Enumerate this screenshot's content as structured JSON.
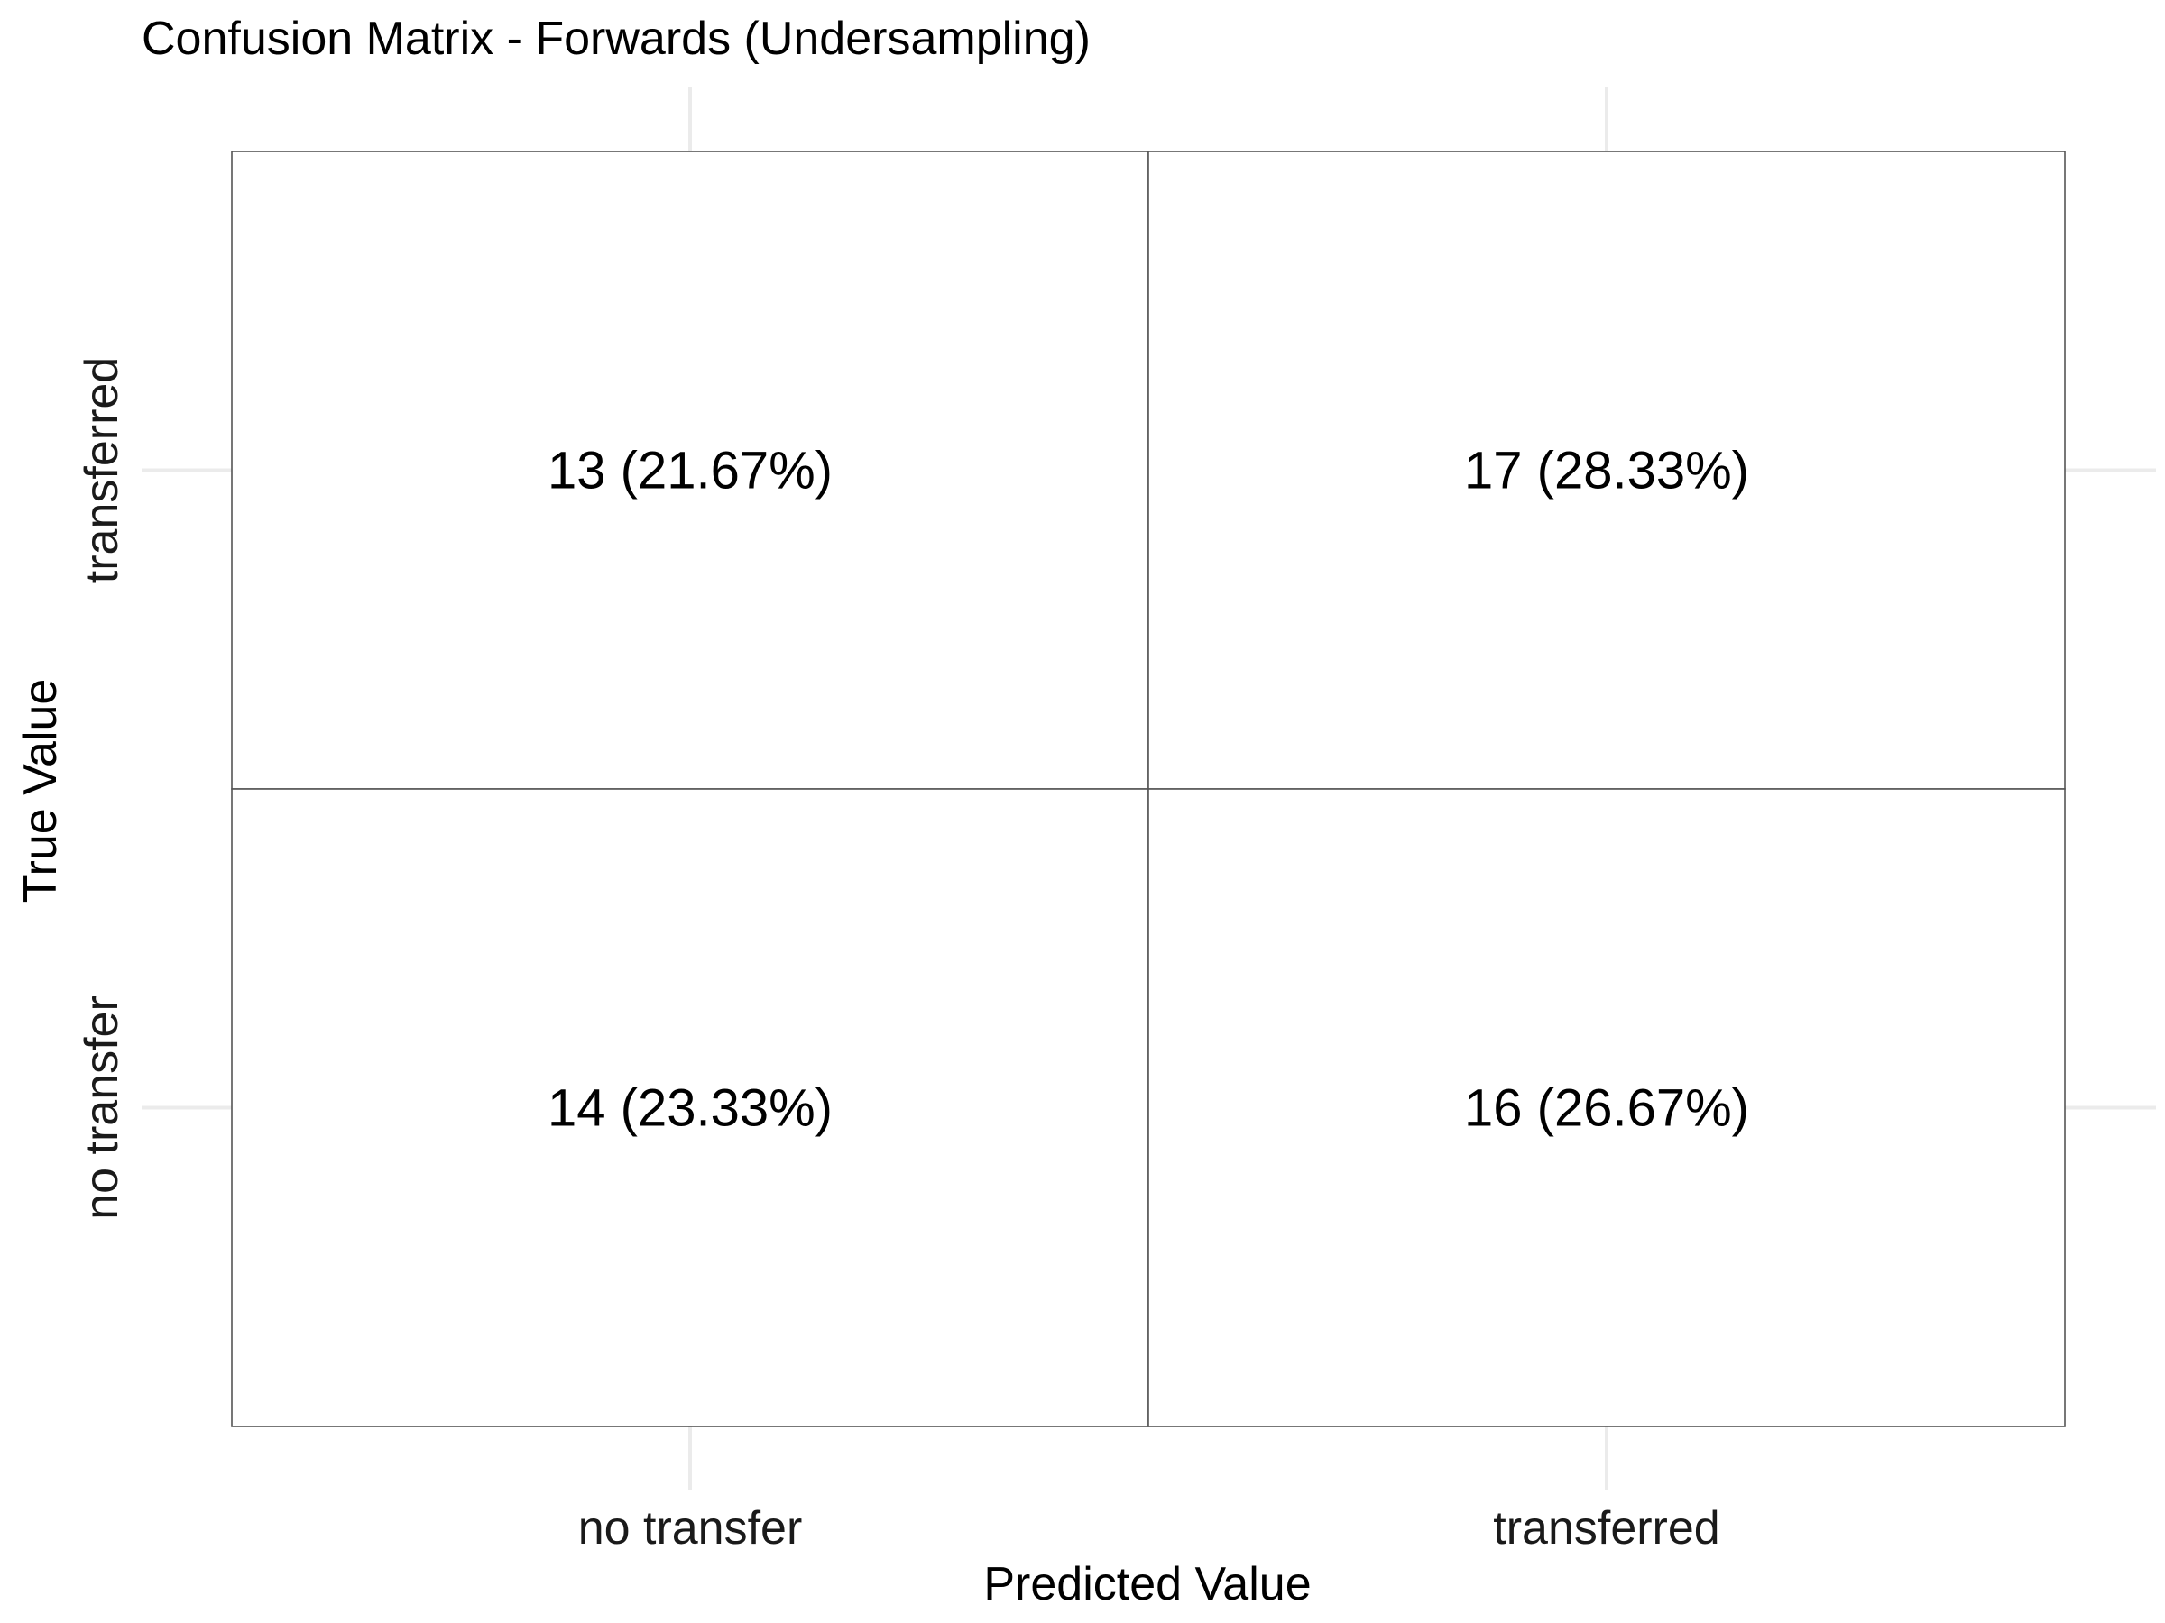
{
  "chart_data": {
    "type": "heatmap",
    "title": "Confusion Matrix - Forwards (Undersampling)",
    "xlabel": "Predicted Value",
    "ylabel": "True Value",
    "x_categories": [
      "no transfer",
      "transferred"
    ],
    "y_categories": [
      "no transfer",
      "transferred"
    ],
    "cells": [
      {
        "predicted": "no transfer",
        "true": "transferred",
        "count": 13,
        "percent": 21.67,
        "label": "13 (21.67%)"
      },
      {
        "predicted": "transferred",
        "true": "transferred",
        "count": 17,
        "percent": 28.33,
        "label": "17 (28.33%)"
      },
      {
        "predicted": "no transfer",
        "true": "no transfer",
        "count": 14,
        "percent": 23.33,
        "label": "14 (23.33%)"
      },
      {
        "predicted": "transferred",
        "true": "no transfer",
        "count": 16,
        "percent": 26.67,
        "label": "16 (26.67%)"
      }
    ],
    "grid": true,
    "legend": "none",
    "cell_fill": "#ffffff",
    "cell_border": "#555555"
  }
}
